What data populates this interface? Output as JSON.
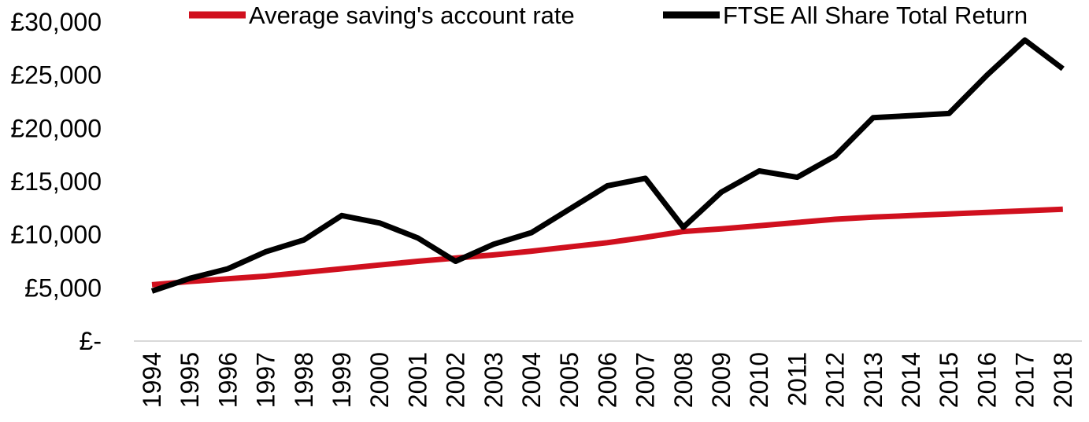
{
  "chart_data": {
    "type": "line",
    "x": [
      "1994",
      "1995",
      "1996",
      "1997",
      "1998",
      "1999",
      "2000",
      "2001",
      "2002",
      "2003",
      "2004",
      "2005",
      "2006",
      "2007",
      "2008",
      "2009",
      "2010",
      "2011",
      "2012",
      "2013",
      "2014",
      "2015",
      "2016",
      "2017",
      "2018"
    ],
    "series": [
      {
        "name": "Average saving's account rate",
        "color": "#d0101e",
        "values": [
          5300,
          5600,
          5850,
          6100,
          6450,
          6800,
          7150,
          7500,
          7800,
          8100,
          8450,
          8850,
          9250,
          9750,
          10300,
          10550,
          10850,
          11150,
          11450,
          11650,
          11800,
          11950,
          12100,
          12250,
          12400
        ]
      },
      {
        "name": "FTSE All Share Total Return",
        "color": "#000000",
        "values": [
          4700,
          5900,
          6800,
          8400,
          9500,
          11800,
          11100,
          9700,
          7500,
          9100,
          10200,
          12400,
          14600,
          15300,
          10700,
          14000,
          16000,
          15400,
          17400,
          21000,
          21200,
          21400,
          25000,
          28300,
          25600
        ]
      }
    ],
    "yticks": [
      "£-",
      "£5,000",
      "£10,000",
      "£15,000",
      "£20,000",
      "£25,000",
      "£30,000"
    ],
    "ylim": [
      0,
      30000
    ],
    "legend_position": "top",
    "grid": false
  }
}
